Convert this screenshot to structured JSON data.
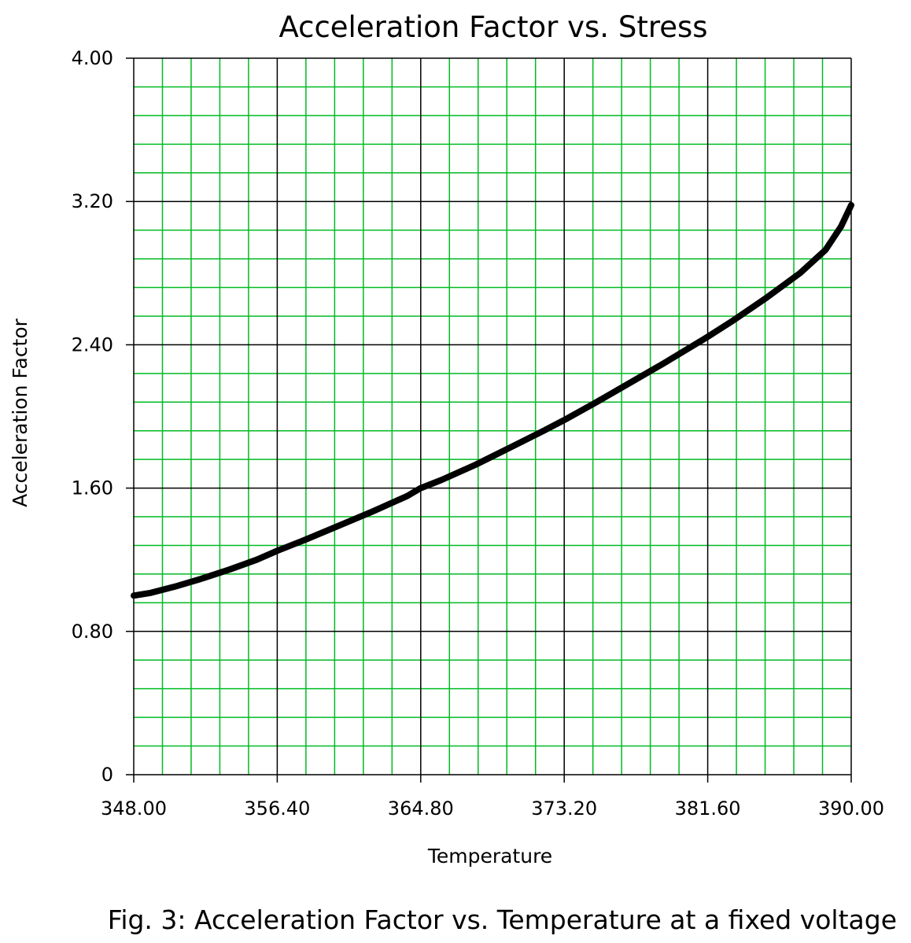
{
  "chart_data": {
    "type": "line",
    "title": "Acceleration Factor vs. Stress",
    "xlabel": "Temperature",
    "ylabel": "Acceleration Factor",
    "xlim": [
      348.0,
      390.0
    ],
    "ylim": [
      0,
      4.0
    ],
    "x_ticks": [
      "348.00",
      "356.40",
      "364.80",
      "373.20",
      "381.60",
      "390.00"
    ],
    "y_ticks": [
      "0",
      "0.80",
      "1.60",
      "2.40",
      "3.20",
      "4.00"
    ],
    "grid": true,
    "legend": "none",
    "series": [
      {
        "x": [
          348.0,
          349.0,
          350.4,
          352.0,
          353.6,
          355.2,
          356.4,
          358.0,
          360.0,
          362.0,
          364.0,
          364.8,
          366.0,
          368.0,
          370.0,
          372.0,
          373.2,
          375.0,
          377.0,
          379.0,
          381.0,
          381.6,
          383.0,
          385.0,
          387.0,
          388.5,
          389.4,
          390.0
        ],
        "y": [
          1.0,
          1.015,
          1.05,
          1.095,
          1.145,
          1.2,
          1.25,
          1.31,
          1.39,
          1.47,
          1.555,
          1.6,
          1.645,
          1.73,
          1.825,
          1.92,
          1.98,
          2.075,
          2.185,
          2.295,
          2.41,
          2.445,
          2.53,
          2.66,
          2.8,
          2.93,
          3.06,
          3.18
        ]
      }
    ],
    "colors": {
      "minor_grid": "#00bb22",
      "major_grid": "#000000",
      "line": "#000000"
    }
  },
  "caption": "Fig. 3:  Acceleration Factor vs. Temperature at a fixed voltage"
}
